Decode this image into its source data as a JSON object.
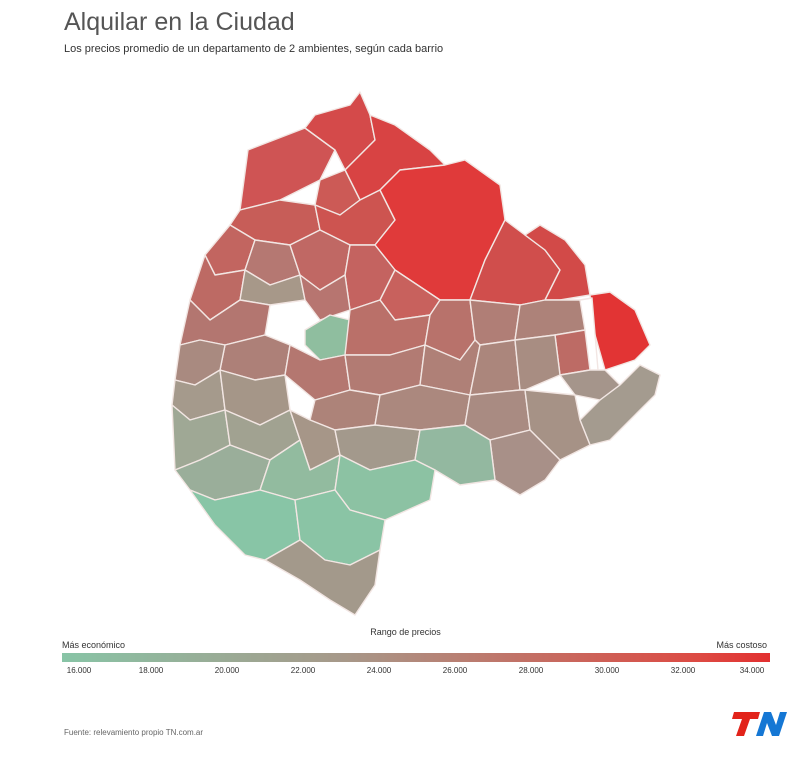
{
  "title": "Alquilar en la Ciudad",
  "subtitle": "Los precios promedio de un departamento de 2 ambientes, según cada barrio",
  "legend": {
    "title": "Rango de precios",
    "low_label": "Más económico",
    "high_label": "Más costoso",
    "ticks": [
      "16.000",
      "18.000",
      "20.000",
      "22.000",
      "24.000",
      "26.000",
      "28.000",
      "30.000",
      "32.000",
      "34.000"
    ],
    "color_low": "#88c4a6",
    "color_mid": "#a79889",
    "color_high": "#e23030"
  },
  "source": "Fuente: relevamiento propio TN.com.ar",
  "logo": "TN",
  "border_color": "#f2e6e3"
}
